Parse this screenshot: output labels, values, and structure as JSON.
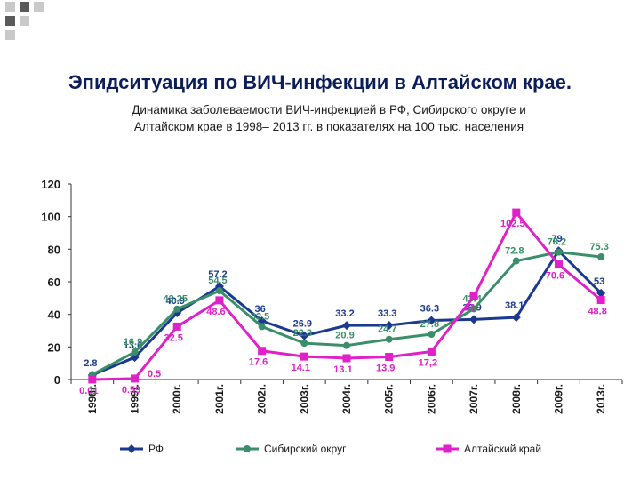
{
  "page": {
    "title": "Эпидситуация по ВИЧ-инфекции в Алтайском крае.",
    "subtitle_line1": "Динамика заболеваемости ВИЧ-инфекцией в РФ, Сибирского округе и",
    "subtitle_line2": "Алтайском крае в 1998– 2013 гг. в показателях на 100 тыс. населения"
  },
  "chart_data": {
    "type": "line",
    "x": [
      "1998г.",
      "1999г.",
      "2000г.",
      "2001г.",
      "2002г.",
      "2003г.",
      "2004г.",
      "2005г.",
      "2006г.",
      "2007г.",
      "2008г.",
      "2009г.",
      "2013г."
    ],
    "ylim": [
      0,
      120
    ],
    "yticks": [
      "0",
      "20",
      "40",
      "60",
      "80",
      "100",
      "120"
    ],
    "grid": false,
    "legend_position": "bottom",
    "series": [
      {
        "name": "РФ",
        "color": "#1b3a8f",
        "marker": "diamond",
        "values": [
          2.8,
          13.6,
          40.9,
          57.2,
          36,
          26.9,
          33.2,
          33.3,
          36.3,
          36.9,
          38.1,
          79,
          53
        ],
        "labels": [
          "2.8",
          "13.6",
          "40.9",
          "57.2",
          "36",
          "26.9",
          "33.2",
          "33.3",
          "36.3",
          "36.9",
          "38.1",
          "79",
          "53"
        ]
      },
      {
        "name": "Сибирский округ",
        "color": "#3a8f6a",
        "marker": "circle",
        "values": [
          3,
          16.9,
          43.25,
          54.5,
          32.5,
          22.3,
          20.9,
          24.7,
          27.8,
          43.4,
          72.8,
          78.2,
          75.3
        ],
        "labels": [
          "",
          "16.9",
          "43.25",
          "54.5",
          "32.5",
          "22.3",
          "20.9",
          "24.7",
          "27.8",
          "43.4",
          "72.8",
          "78.2",
          "75.3"
        ]
      },
      {
        "name": "Алтайский край",
        "color": "#e020c8",
        "marker": "square",
        "values": [
          0.01,
          0.59,
          32.5,
          48.6,
          17.6,
          14.1,
          13.1,
          13.9,
          17.2,
          51,
          102.5,
          70.6,
          48.8
        ],
        "labels": [
          "0.01",
          "0.59",
          "32.5",
          "48.6",
          "17.6",
          "14.1",
          "13.1",
          "13,9",
          "17,2",
          "51",
          "102.5",
          "70.6",
          "48.8"
        ]
      }
    ],
    "extra_labels": [
      "0.5"
    ]
  }
}
